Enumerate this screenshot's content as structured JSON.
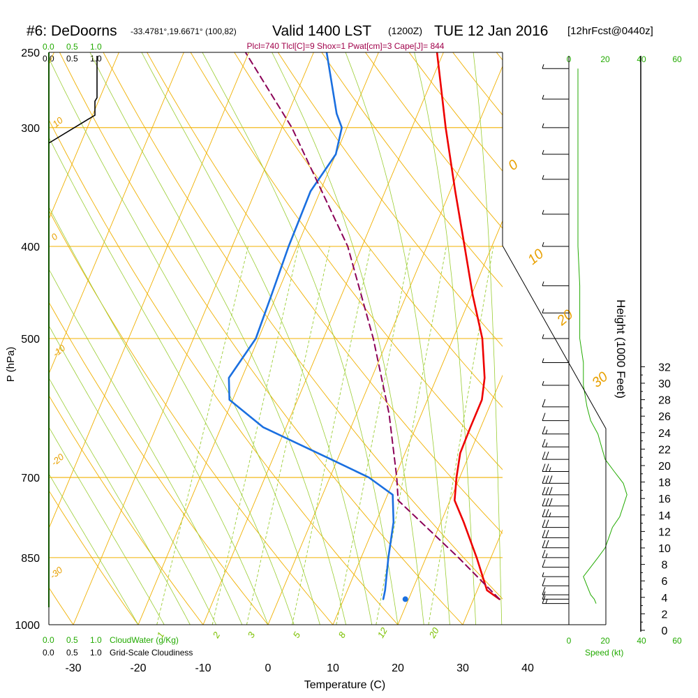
{
  "header": {
    "station": "#6: DeDoorns",
    "coords": "-33.4781°,19.6671° (100,82)",
    "valid": "Valid 1400 LST",
    "zulu": "(1200Z)",
    "date": "TUE 12 Jan 2016",
    "forecast": "[12hrFcst@0440z]",
    "indices": "Plcl=740 Tlcl[C]=9 Shox=1 Pwat[cm]=3 Cape[J]= 844"
  },
  "labels": {
    "cloudwater": "CloudWater (g/Kg)",
    "cloudiness": "Grid-Scale Cloudiness",
    "speed": "Speed (kt)",
    "height": "Height (1000 Feet)",
    "pressure": "P (hPa)",
    "temperature": "Temperature (C)"
  },
  "scales": {
    "cloud_ticks": [
      "0.0",
      "0.5",
      "1.0"
    ],
    "speed_ticks": [
      "0",
      "20",
      "40",
      "60"
    ]
  },
  "colors": {
    "temperature": "#ee0000",
    "dewpoint": "#1a6fe0",
    "parcel": "#8b0057",
    "isotherm": "#f0b000",
    "dry_adiabat": "#f0b000",
    "moist_adiabat": "#9acd32",
    "mixing_ratio": "#9acd32",
    "cloudwater": "#22aa00"
  },
  "chart_data": {
    "type": "line",
    "diagram": "skew-T log-P",
    "xlabel": "Temperature (C)",
    "ylabel": "P (hPa)",
    "xlim": [
      -35,
      45
    ],
    "ylim": [
      1000,
      250
    ],
    "x_ticks": [
      -30,
      -20,
      -10,
      0,
      10,
      20,
      30,
      40
    ],
    "y_ticks": [
      250,
      300,
      400,
      500,
      700,
      850,
      1000
    ],
    "height_axis": {
      "label": "Height (1000 Feet)",
      "ticks": [
        0,
        2,
        4,
        6,
        8,
        10,
        12,
        14,
        16,
        18,
        20,
        22,
        24,
        26,
        28,
        30,
        32
      ]
    },
    "series": [
      {
        "role": "temperature",
        "points": [
          {
            "p": 940,
            "t": 34.0
          },
          {
            "p": 920,
            "t": 31.5
          },
          {
            "p": 850,
            "t": 27.8
          },
          {
            "p": 780,
            "t": 23.5
          },
          {
            "p": 740,
            "t": 20.7
          },
          {
            "p": 700,
            "t": 19.5
          },
          {
            "p": 660,
            "t": 18.5
          },
          {
            "p": 620,
            "t": 18.4
          },
          {
            "p": 580,
            "t": 18.4
          },
          {
            "p": 550,
            "t": 17.4
          },
          {
            "p": 500,
            "t": 14.5
          },
          {
            "p": 450,
            "t": 10.2
          },
          {
            "p": 400,
            "t": 5.8
          },
          {
            "p": 350,
            "t": 0.8
          },
          {
            "p": 300,
            "t": -4.8
          },
          {
            "p": 250,
            "t": -11.0
          }
        ]
      },
      {
        "role": "dewpoint",
        "points": [
          {
            "p": 940,
            "t": 16.1
          },
          {
            "p": 920,
            "t": 15.8
          },
          {
            "p": 850,
            "t": 14.2
          },
          {
            "p": 780,
            "t": 12.7
          },
          {
            "p": 730,
            "t": 10.8
          },
          {
            "p": 700,
            "t": 6.0
          },
          {
            "p": 670,
            "t": -1.0
          },
          {
            "p": 620,
            "t": -13.5
          },
          {
            "p": 580,
            "t": -20.5
          },
          {
            "p": 550,
            "t": -22.0
          },
          {
            "p": 500,
            "t": -20.4
          },
          {
            "p": 450,
            "t": -20.8
          },
          {
            "p": 400,
            "t": -21.3
          },
          {
            "p": 350,
            "t": -21.5
          },
          {
            "p": 320,
            "t": -20.0
          },
          {
            "p": 300,
            "t": -20.8
          },
          {
            "p": 290,
            "t": -22.5
          },
          {
            "p": 250,
            "t": -28.0
          }
        ]
      },
      {
        "role": "parcel",
        "points": [
          {
            "p": 940,
            "t": 34.0
          },
          {
            "p": 850,
            "t": 25.0
          },
          {
            "p": 740,
            "t": 12.0
          },
          {
            "p": 700,
            "t": 10.3
          },
          {
            "p": 600,
            "t": 5.0
          },
          {
            "p": 500,
            "t": -2.3
          },
          {
            "p": 400,
            "t": -12.2
          },
          {
            "p": 300,
            "t": -28.5
          },
          {
            "p": 250,
            "t": -40.5
          }
        ]
      }
    ],
    "surface_points": [
      {
        "role": "temperature",
        "p": 940,
        "t": 36.0
      },
      {
        "role": "dewpoint",
        "p": 940,
        "t": 19.5
      }
    ],
    "isotherm_labels": [
      "0",
      "10",
      "20",
      "30",
      "10",
      "0",
      "-10",
      "-20",
      "-30"
    ],
    "mixing_ratio_labels": [
      "1",
      "2",
      "3",
      "5",
      "8",
      "12",
      "20"
    ],
    "wind_barbs": [
      {
        "p": 950,
        "kt": 15
      },
      {
        "p": 940,
        "kt": 14
      },
      {
        "p": 930,
        "kt": 12
      },
      {
        "p": 910,
        "kt": 10
      },
      {
        "p": 890,
        "kt": 8
      },
      {
        "p": 870,
        "kt": 12
      },
      {
        "p": 850,
        "kt": 16
      },
      {
        "p": 830,
        "kt": 20
      },
      {
        "p": 810,
        "kt": 22
      },
      {
        "p": 790,
        "kt": 24
      },
      {
        "p": 770,
        "kt": 28
      },
      {
        "p": 750,
        "kt": 30
      },
      {
        "p": 730,
        "kt": 32
      },
      {
        "p": 710,
        "kt": 30
      },
      {
        "p": 690,
        "kt": 25
      },
      {
        "p": 670,
        "kt": 20
      },
      {
        "p": 650,
        "kt": 18
      },
      {
        "p": 630,
        "kt": 16
      },
      {
        "p": 610,
        "kt": 12
      },
      {
        "p": 590,
        "kt": 10
      },
      {
        "p": 560,
        "kt": 8
      },
      {
        "p": 530,
        "kt": 8
      },
      {
        "p": 500,
        "kt": 6
      },
      {
        "p": 470,
        "kt": 6
      },
      {
        "p": 440,
        "kt": 6
      },
      {
        "p": 400,
        "kt": 5
      },
      {
        "p": 370,
        "kt": 5
      },
      {
        "p": 340,
        "kt": 5
      },
      {
        "p": 320,
        "kt": 5
      },
      {
        "p": 300,
        "kt": 5
      },
      {
        "p": 280,
        "kt": 5
      },
      {
        "p": 260,
        "kt": 5
      }
    ]
  }
}
